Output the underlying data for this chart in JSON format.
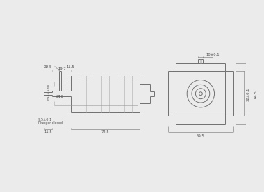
{
  "bg_color": "#ebebeb",
  "line_color": "#707070",
  "dim_color": "#707070",
  "text_color": "#505050",
  "annotations": {
    "phi25": "Ø2.5",
    "dim_115_top": "11.5",
    "dim_197": "19.7",
    "dim_phi16": "Ø16",
    "dim_m4": "M4X1.5-6g",
    "dim_95": "9.5±0.1",
    "plunger": "Plunger closed",
    "dim_115_bot": "11.5",
    "dim_725": "72.5",
    "dim_10": "10±0.1",
    "dim_32": "32±0.1",
    "dim_645": "64.5",
    "dim_695": "69.5"
  }
}
